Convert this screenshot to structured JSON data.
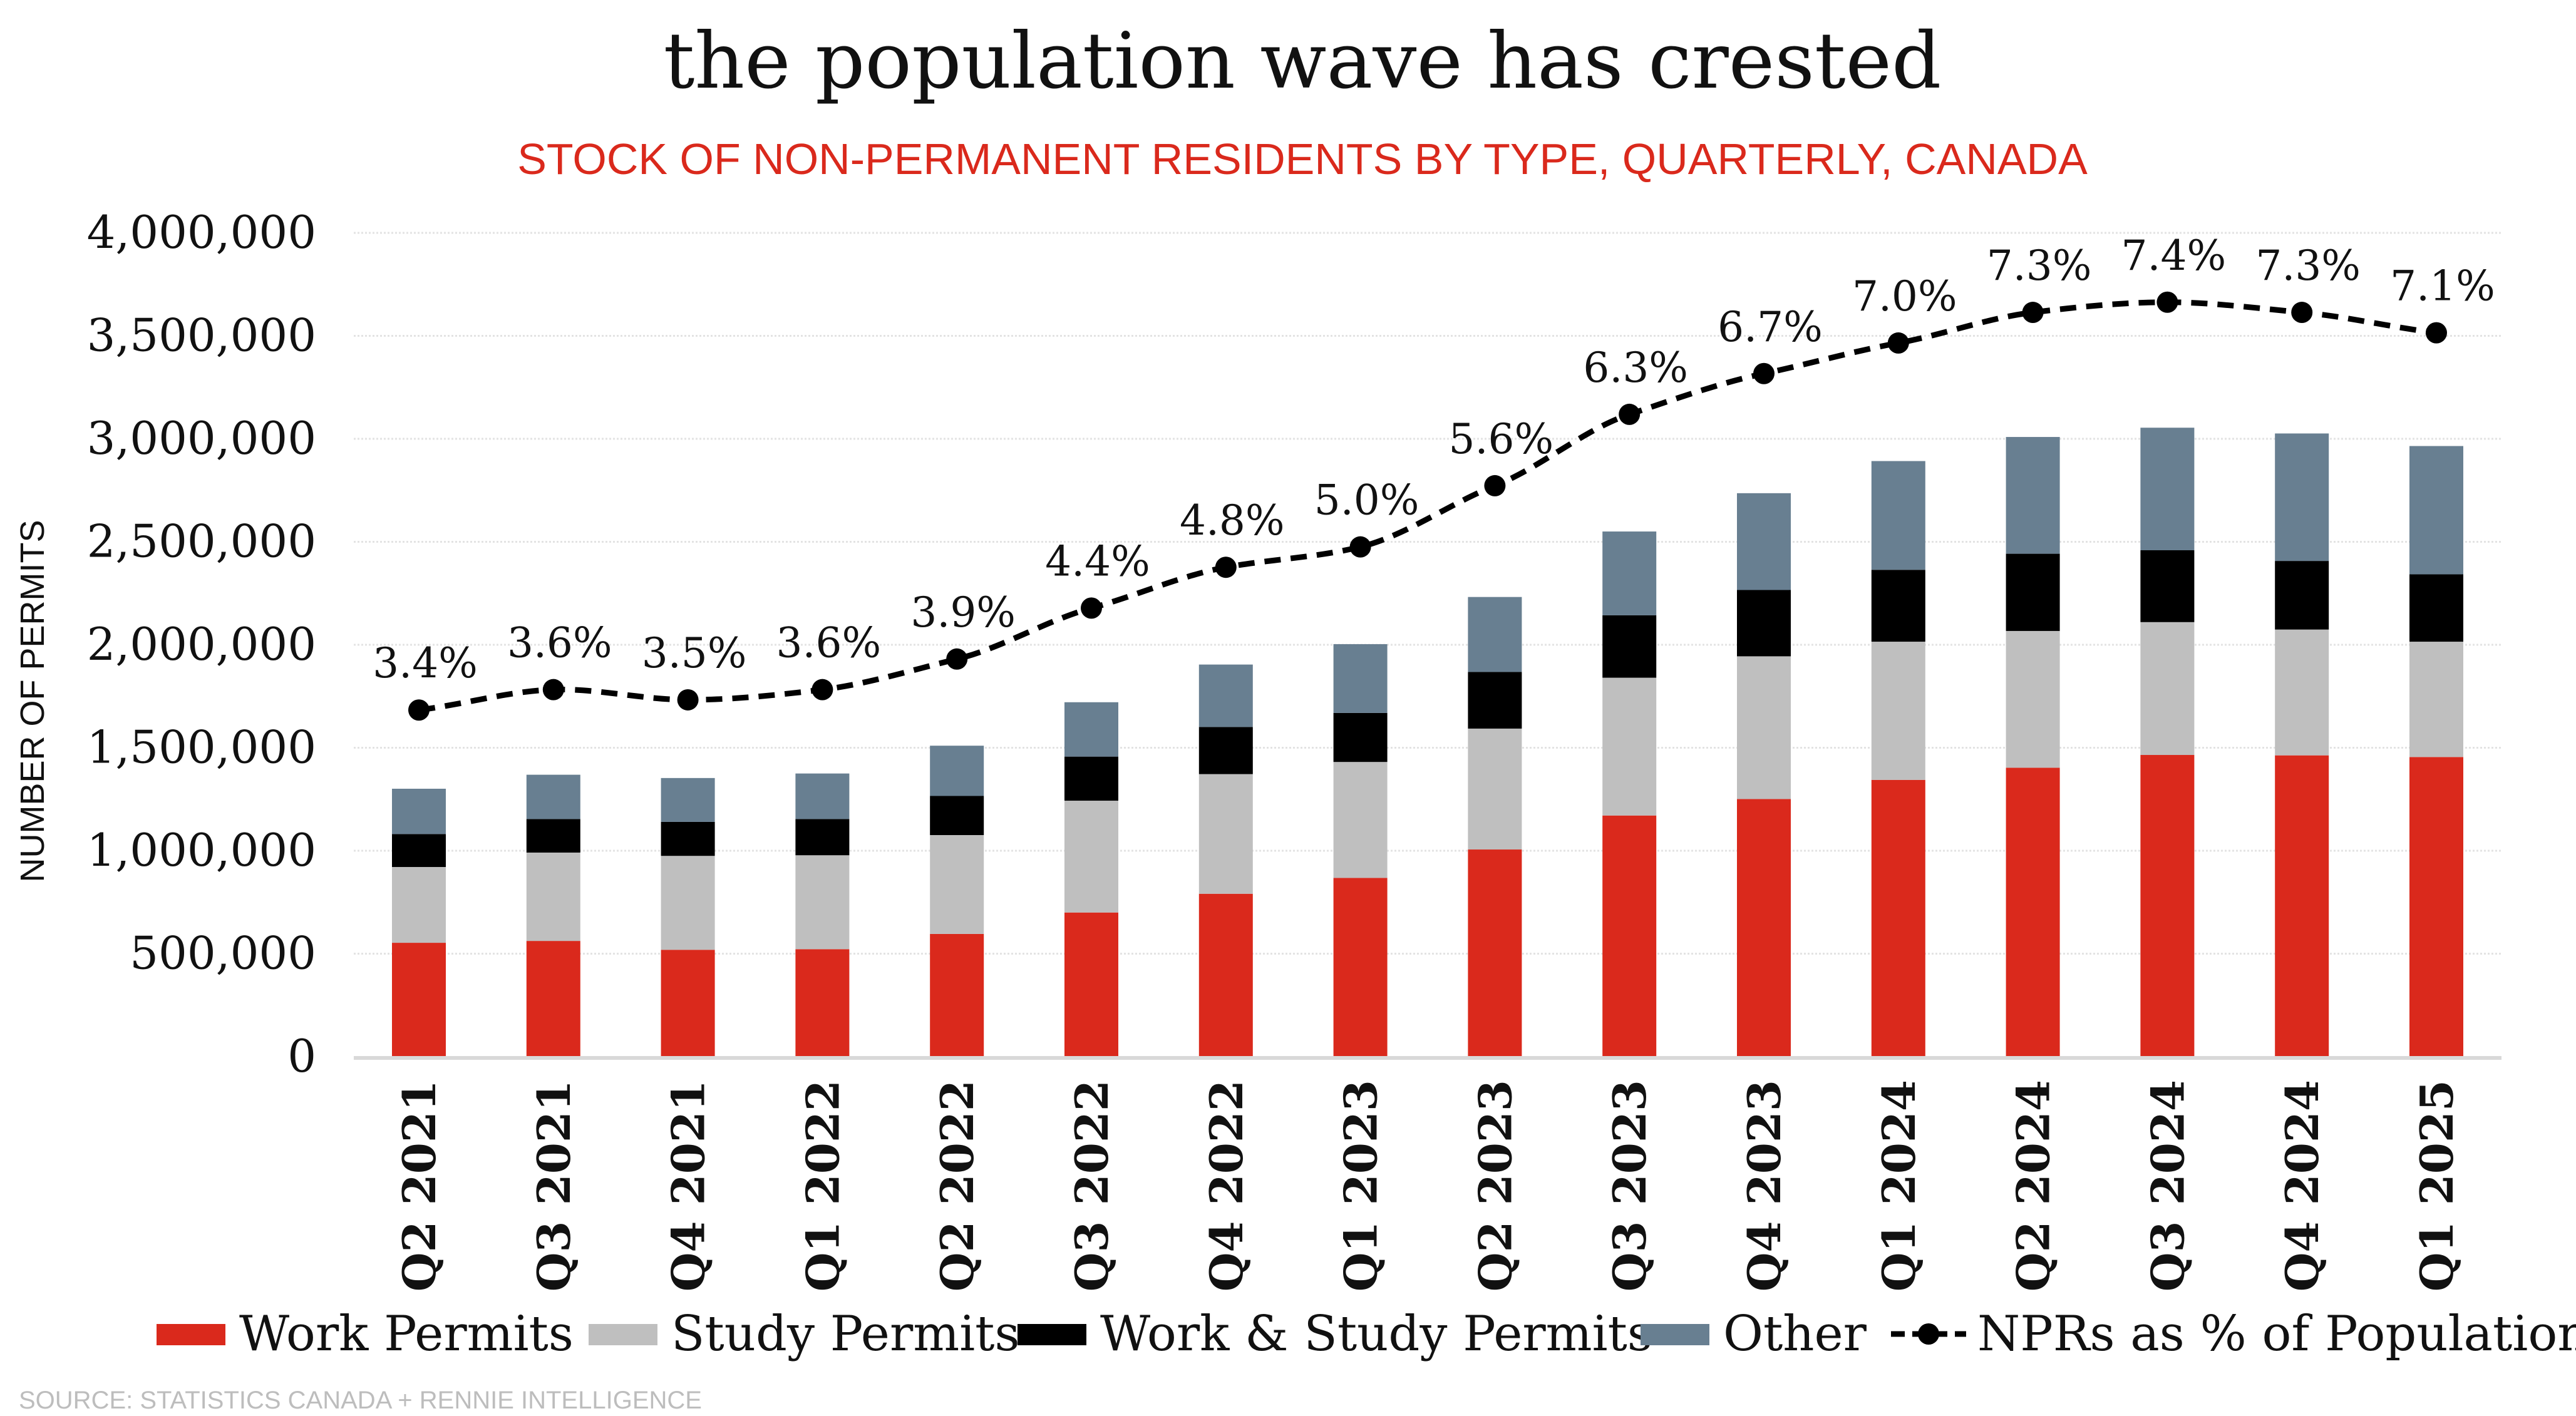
{
  "chart_data": {
    "type": "bar",
    "stacked": true,
    "title": "the population wave has crested",
    "subtitle": "STOCK OF NON-PERMANENT RESIDENTS BY TYPE, QUARTERLY, CANADA",
    "ylabel": "NUMBER OF PERMITS",
    "xlabel": "",
    "ylim": [
      0,
      4000000
    ],
    "yticks": [
      0,
      500000,
      1000000,
      1500000,
      2000000,
      2500000,
      3000000,
      3500000,
      4000000
    ],
    "ytick_labels": [
      "0",
      "500,000",
      "1,000,000",
      "1,500,000",
      "2,000,000",
      "2,500,000",
      "3,000,000",
      "3,500,000",
      "4,000,000"
    ],
    "grid": true,
    "legend_position": "bottom",
    "categories": [
      "Q2 2021",
      "Q3 2021",
      "Q4 2021",
      "Q1 2022",
      "Q2 2022",
      "Q3 2022",
      "Q4 2022",
      "Q1 2023",
      "Q2 2023",
      "Q3 2023",
      "Q4 2023",
      "Q1 2024",
      "Q2 2024",
      "Q3 2024",
      "Q4 2024",
      "Q1 2025"
    ],
    "series": [
      {
        "name": "Work Permits",
        "color": "#da291c",
        "values": [
          553000,
          562000,
          519000,
          522000,
          596000,
          700000,
          791000,
          868000,
          1006000,
          1171000,
          1251000,
          1344000,
          1403000,
          1465000,
          1463000,
          1455000
        ]
      },
      {
        "name": "Study Permits",
        "color": "#bfbfbf",
        "values": [
          368000,
          429000,
          456000,
          456000,
          480000,
          543000,
          581000,
          563000,
          587000,
          669000,
          693000,
          671000,
          664000,
          645000,
          611000,
          560000
        ]
      },
      {
        "name": "Work & Study Permits",
        "color": "#000000",
        "values": [
          160000,
          163000,
          165000,
          176000,
          190000,
          214000,
          229000,
          238000,
          275000,
          303000,
          322000,
          349000,
          375000,
          349000,
          333000,
          327000
        ]
      },
      {
        "name": "Other",
        "color": "#687f91",
        "values": [
          220000,
          215000,
          213000,
          221000,
          244000,
          264000,
          303000,
          334000,
          364000,
          407000,
          470000,
          528000,
          567000,
          595000,
          619000,
          623000
        ]
      }
    ],
    "line_series": {
      "name": "NPRs as % of Population",
      "color": "#000000",
      "style": "dashed",
      "axis": "secondary-hidden",
      "y2lim": [
        0,
        8.08
      ],
      "values": [
        3.4,
        3.6,
        3.5,
        3.6,
        3.9,
        4.4,
        4.8,
        5.0,
        5.6,
        6.3,
        6.7,
        7.0,
        7.3,
        7.4,
        7.3,
        7.1
      ],
      "labels": [
        "3.4%",
        "3.6%",
        "3.5%",
        "3.6%",
        "3.9%",
        "4.4%",
        "4.8%",
        "5.0%",
        "5.6%",
        "6.3%",
        "6.7%",
        "7.0%",
        "7.3%",
        "7.4%",
        "7.3%",
        "7.1%"
      ]
    },
    "source": "SOURCE: STATISTICS CANADA + RENNIE INTELLIGENCE"
  }
}
